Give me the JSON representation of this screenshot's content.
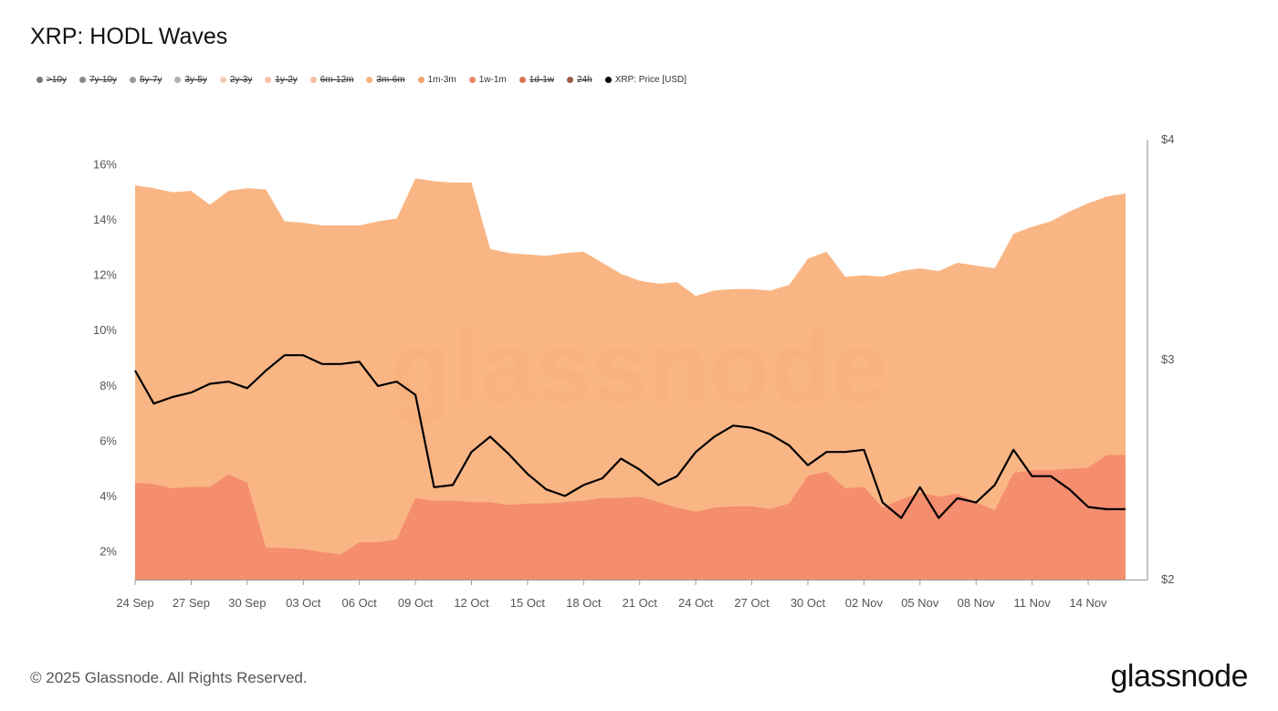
{
  "title": "XRP: HODL Waves",
  "legend": [
    {
      "label": ">10y",
      "color": "#777777",
      "active": false
    },
    {
      "label": "7y-10y",
      "color": "#888888",
      "active": false
    },
    {
      "label": "5y-7y",
      "color": "#9a9a9a",
      "active": false
    },
    {
      "label": "3y-5y",
      "color": "#b0b0b0",
      "active": false
    },
    {
      "label": "2y-3y",
      "color": "#f5c9b0",
      "active": false
    },
    {
      "label": "1y-2y",
      "color": "#f6c2a7",
      "active": false
    },
    {
      "label": "6m-12m",
      "color": "#f4bea0",
      "active": false
    },
    {
      "label": "3m-6m",
      "color": "#f8b27a",
      "active": false
    },
    {
      "label": "1m-3m",
      "color": "#f2a472",
      "active": true
    },
    {
      "label": "1w-1m",
      "color": "#e8876a",
      "active": true
    },
    {
      "label": "1d-1w",
      "color": "#d8744f",
      "active": false
    },
    {
      "label": "24h",
      "color": "#9a6040",
      "active": false
    },
    {
      "label": "XRP: Price [USD]",
      "color": "#000000",
      "active": true
    }
  ],
  "footer": "© 2025 Glassnode. All Rights Reserved.",
  "brand": "glassnode",
  "watermark": "glassnode",
  "chart_data": {
    "type": "area",
    "x": [
      "24 Sep",
      "25 Sep",
      "26 Sep",
      "27 Sep",
      "28 Sep",
      "29 Sep",
      "30 Sep",
      "01 Oct",
      "02 Oct",
      "03 Oct",
      "04 Oct",
      "05 Oct",
      "06 Oct",
      "07 Oct",
      "08 Oct",
      "09 Oct",
      "10 Oct",
      "11 Oct",
      "12 Oct",
      "13 Oct",
      "14 Oct",
      "15 Oct",
      "16 Oct",
      "17 Oct",
      "18 Oct",
      "19 Oct",
      "20 Oct",
      "21 Oct",
      "22 Oct",
      "23 Oct",
      "24 Oct",
      "25 Oct",
      "26 Oct",
      "27 Oct",
      "28 Oct",
      "29 Oct",
      "30 Oct",
      "31 Oct",
      "01 Nov",
      "02 Nov",
      "03 Nov",
      "04 Nov",
      "05 Nov",
      "06 Nov",
      "07 Nov",
      "08 Nov",
      "09 Nov",
      "10 Nov",
      "11 Nov",
      "12 Nov",
      "13 Nov",
      "14 Nov",
      "15 Nov",
      "16 Nov"
    ],
    "x_tick_labels": [
      "24 Sep",
      "27 Sep",
      "30 Sep",
      "03 Oct",
      "06 Oct",
      "09 Oct",
      "12 Oct",
      "15 Oct",
      "18 Oct",
      "21 Oct",
      "24 Oct",
      "27 Oct",
      "30 Oct",
      "02 Nov",
      "05 Nov",
      "08 Nov",
      "11 Nov",
      "14 Nov"
    ],
    "y_tick_labels": [
      "2%",
      "4%",
      "6%",
      "8%",
      "10%",
      "12%",
      "14%",
      "16%"
    ],
    "y2_tick_labels": [
      "$2",
      "$3",
      "$4"
    ],
    "ylim": [
      1,
      17
    ],
    "y2lim": [
      2,
      4
    ],
    "series": [
      {
        "name": "1w-1m",
        "color": "#f48a6e",
        "values": [
          4.5,
          4.45,
          4.3,
          4.35,
          4.35,
          4.8,
          4.5,
          2.15,
          2.15,
          2.1,
          2.0,
          1.9,
          2.35,
          2.35,
          2.45,
          3.95,
          3.85,
          3.85,
          3.8,
          3.8,
          3.7,
          3.75,
          3.75,
          3.8,
          3.85,
          3.95,
          3.95,
          4.0,
          3.8,
          3.6,
          3.45,
          3.6,
          3.65,
          3.65,
          3.55,
          3.75,
          4.75,
          4.9,
          4.3,
          4.35,
          3.6,
          3.9,
          4.15,
          4.0,
          4.1,
          3.8,
          3.5,
          4.85,
          4.95,
          4.95,
          5.0,
          5.05,
          5.5,
          5.5
        ],
        "stacked": false
      },
      {
        "name": "1m-3m",
        "color": "#f9b07a",
        "values": [
          15.25,
          15.15,
          15.0,
          15.05,
          14.55,
          15.05,
          15.15,
          15.1,
          13.95,
          13.9,
          13.8,
          13.8,
          13.8,
          13.95,
          14.05,
          15.5,
          15.4,
          15.35,
          15.35,
          12.95,
          12.8,
          12.75,
          12.7,
          12.8,
          12.85,
          12.45,
          12.05,
          11.8,
          11.7,
          11.75,
          11.25,
          11.45,
          11.5,
          11.5,
          11.45,
          11.65,
          12.6,
          12.85,
          11.95,
          12.0,
          11.95,
          12.15,
          12.25,
          12.15,
          12.45,
          12.35,
          12.25,
          13.5,
          13.75,
          13.95,
          14.3,
          14.6,
          14.85,
          14.95
        ],
        "stacked": false
      },
      {
        "name": "XRP: Price [USD]",
        "color": "#000000",
        "axis": "right",
        "values": [
          2.95,
          2.8,
          2.83,
          2.85,
          2.89,
          2.9,
          2.87,
          2.95,
          3.02,
          3.02,
          2.98,
          2.98,
          2.99,
          2.88,
          2.9,
          2.84,
          2.42,
          2.43,
          2.58,
          2.65,
          2.57,
          2.48,
          2.41,
          2.38,
          2.43,
          2.46,
          2.55,
          2.5,
          2.43,
          2.47,
          2.58,
          2.65,
          2.7,
          2.69,
          2.66,
          2.61,
          2.52,
          2.58,
          2.58,
          2.59,
          2.35,
          2.28,
          2.42,
          2.28,
          2.37,
          2.35,
          2.43,
          2.59,
          2.47,
          2.47,
          2.41,
          2.33,
          2.32,
          2.32
        ]
      }
    ]
  }
}
